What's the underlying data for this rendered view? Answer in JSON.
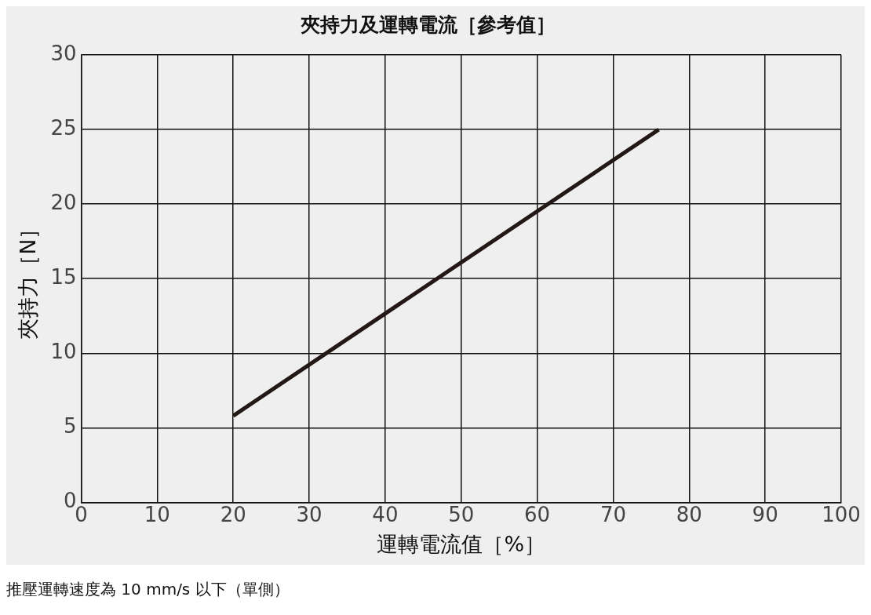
{
  "chart_data": {
    "type": "line",
    "title": "夾持力及運轉電流［參考值］",
    "xlabel": "運轉電流值［%］",
    "ylabel": "夾持力［N］",
    "x": [
      20,
      76
    ],
    "series": [
      {
        "color": "#231815",
        "values": [
          5.8,
          25
        ]
      }
    ],
    "xlim": [
      0,
      100
    ],
    "xticks": [
      0,
      10,
      20,
      30,
      40,
      50,
      60,
      70,
      80,
      90,
      100
    ],
    "ylim": [
      0,
      30
    ],
    "yticks": [
      0,
      5,
      10,
      15,
      20,
      25,
      30
    ],
    "grid": true,
    "marker": "none",
    "line_style": "solid",
    "annotations": [
      "推壓運轉速度為 10 mm/s 以下（單側）"
    ]
  }
}
